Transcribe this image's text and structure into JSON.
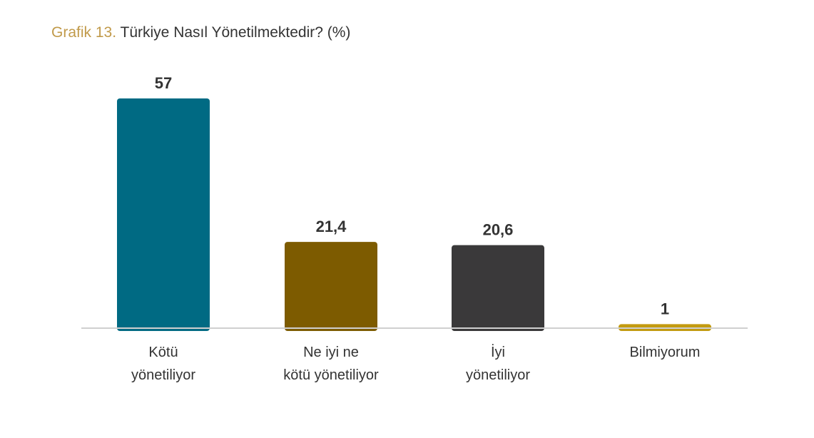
{
  "title": {
    "prefix": "Grafik 13.",
    "text": "Türkiye Nasıl Yönetilmektedir? (%)"
  },
  "chart_data": {
    "type": "bar",
    "title": "Grafik 13. Türkiye Nasıl Yönetilmektedir? (%)",
    "categories": [
      [
        "Kötü",
        "yönetiliyor"
      ],
      [
        "Ne iyi ne",
        "kötü yönetiliyor"
      ],
      [
        "İyi",
        "yönetiliyor"
      ],
      [
        "Bilmiyorum"
      ]
    ],
    "values": [
      57,
      21.4,
      20.6,
      1
    ],
    "value_labels": [
      "57",
      "21,4",
      "20,6",
      "1"
    ],
    "colors": [
      "#006a83",
      "#7d5b00",
      "#3a393a",
      "#c39b10"
    ],
    "ylim": [
      0,
      57
    ],
    "grid": false,
    "legend": "none"
  }
}
